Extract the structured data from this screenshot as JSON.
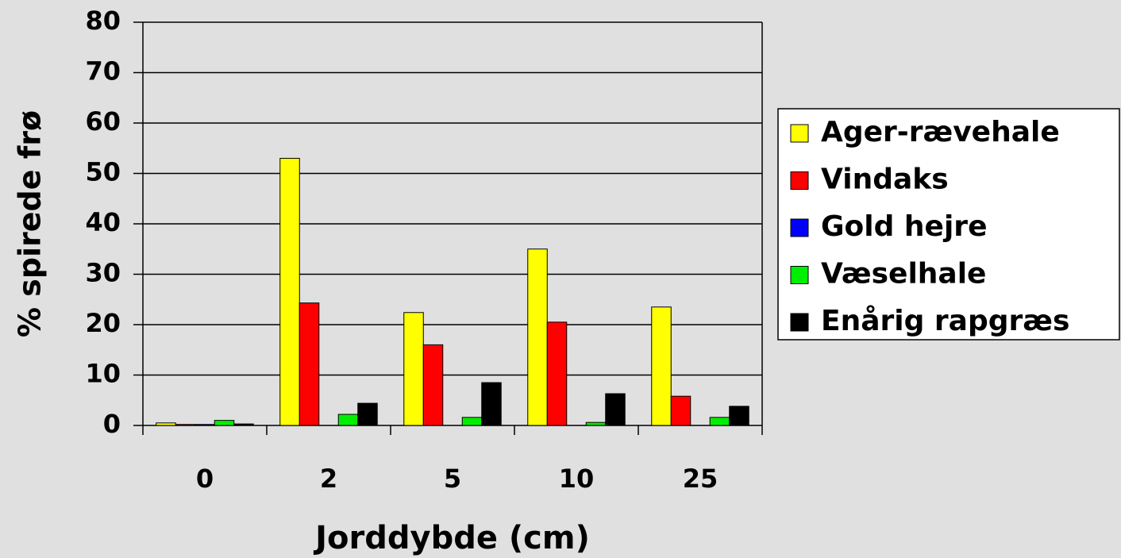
{
  "chart_data": {
    "type": "bar",
    "xlabel": "Jorddybde (cm)",
    "ylabel": "% spirede frø",
    "categories": [
      "0",
      "2",
      "5",
      "10",
      "25"
    ],
    "series": [
      {
        "name": "Ager-rævehale",
        "color": "#ffff00",
        "values": [
          0.5,
          53,
          22.4,
          35,
          23.5
        ]
      },
      {
        "name": "Vindaks",
        "color": "#ff0000",
        "values": [
          0.2,
          24.3,
          16,
          20.5,
          5.8
        ]
      },
      {
        "name": "Gold hejre",
        "color": "#0000ff",
        "values": [
          0.2,
          0,
          0,
          0,
          0
        ]
      },
      {
        "name": "Væselhale",
        "color": "#00ee00",
        "values": [
          1,
          2.2,
          1.6,
          0.6,
          1.6
        ]
      },
      {
        "name": "Enårig rapgræs",
        "color": "#000000",
        "values": [
          0.3,
          4.4,
          8.5,
          6.3,
          3.8
        ]
      }
    ],
    "ylim": [
      0,
      80
    ],
    "yticks": [
      0,
      10,
      20,
      30,
      40,
      50,
      60,
      70,
      80
    ],
    "grid": true,
    "legend": "right"
  }
}
